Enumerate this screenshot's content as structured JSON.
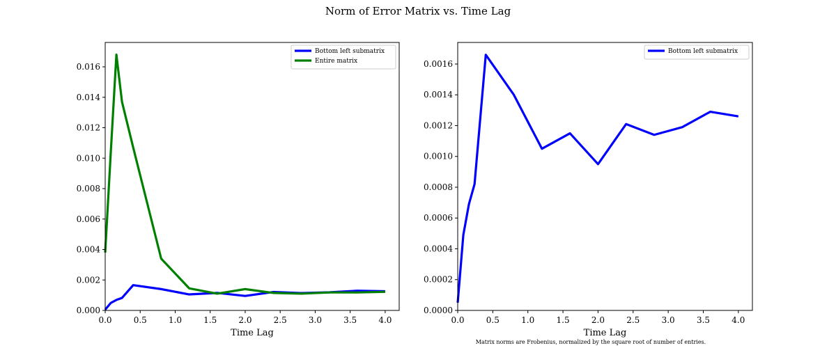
{
  "figure": {
    "title": "Norm of Error Matrix vs. Time Lag",
    "footnote": "Matrix norms are Frobenius, normalized by the square root of number of entries."
  },
  "chart_data": [
    {
      "type": "line",
      "xlabel": "Time Lag",
      "ylabel": "",
      "xlim": [
        0,
        4.2
      ],
      "ylim": [
        0,
        0.0176
      ],
      "xticks": [
        "0.0",
        "0.5",
        "1.0",
        "1.5",
        "2.0",
        "2.5",
        "3.0",
        "3.5",
        "4.0"
      ],
      "yticks": [
        "0.000",
        "0.002",
        "0.004",
        "0.006",
        "0.008",
        "0.010",
        "0.012",
        "0.014",
        "0.016"
      ],
      "legend": "top-right",
      "grid": false,
      "series": [
        {
          "name": "Bottom left submatrix",
          "color": "#0000ff",
          "x": [
            0.0,
            0.08,
            0.16,
            0.24,
            0.4,
            0.8,
            1.2,
            1.6,
            2.0,
            2.4,
            2.8,
            3.2,
            3.6,
            4.0
          ],
          "y": [
            5e-05,
            0.00049,
            0.00069,
            0.00082,
            0.00166,
            0.0014,
            0.00105,
            0.00115,
            0.00095,
            0.00121,
            0.00114,
            0.00119,
            0.00129,
            0.00126
          ]
        },
        {
          "name": "Entire matrix",
          "color": "#008000",
          "x": [
            0.0,
            0.08,
            0.16,
            0.24,
            0.4,
            0.8,
            1.2,
            1.6,
            2.0,
            2.4,
            2.8,
            3.2,
            3.6,
            4.0
          ],
          "y": [
            0.0038,
            0.0104,
            0.0168,
            0.0137,
            0.0107,
            0.0034,
            0.00145,
            0.0011,
            0.0014,
            0.00115,
            0.0011,
            0.00118,
            0.00118,
            0.00122
          ]
        }
      ]
    },
    {
      "type": "line",
      "xlabel": "Time Lag",
      "ylabel": "",
      "xlim": [
        0,
        4.2
      ],
      "ylim": [
        0,
        0.00174
      ],
      "xticks": [
        "0.0",
        "0.5",
        "1.0",
        "1.5",
        "2.0",
        "2.5",
        "3.0",
        "3.5",
        "4.0"
      ],
      "yticks": [
        "0.0000",
        "0.0002",
        "0.0004",
        "0.0006",
        "0.0008",
        "0.0010",
        "0.0012",
        "0.0014",
        "0.0016"
      ],
      "legend": "top-right",
      "grid": false,
      "series": [
        {
          "name": "Bottom left submatrix",
          "color": "#0000ff",
          "x": [
            0.0,
            0.08,
            0.16,
            0.24,
            0.4,
            0.8,
            1.2,
            1.6,
            2.0,
            2.4,
            2.8,
            3.2,
            3.6,
            4.0
          ],
          "y": [
            5e-05,
            0.00049,
            0.00069,
            0.00082,
            0.00166,
            0.0014,
            0.00105,
            0.00115,
            0.00095,
            0.00121,
            0.00114,
            0.00119,
            0.00129,
            0.00126
          ]
        }
      ]
    }
  ]
}
